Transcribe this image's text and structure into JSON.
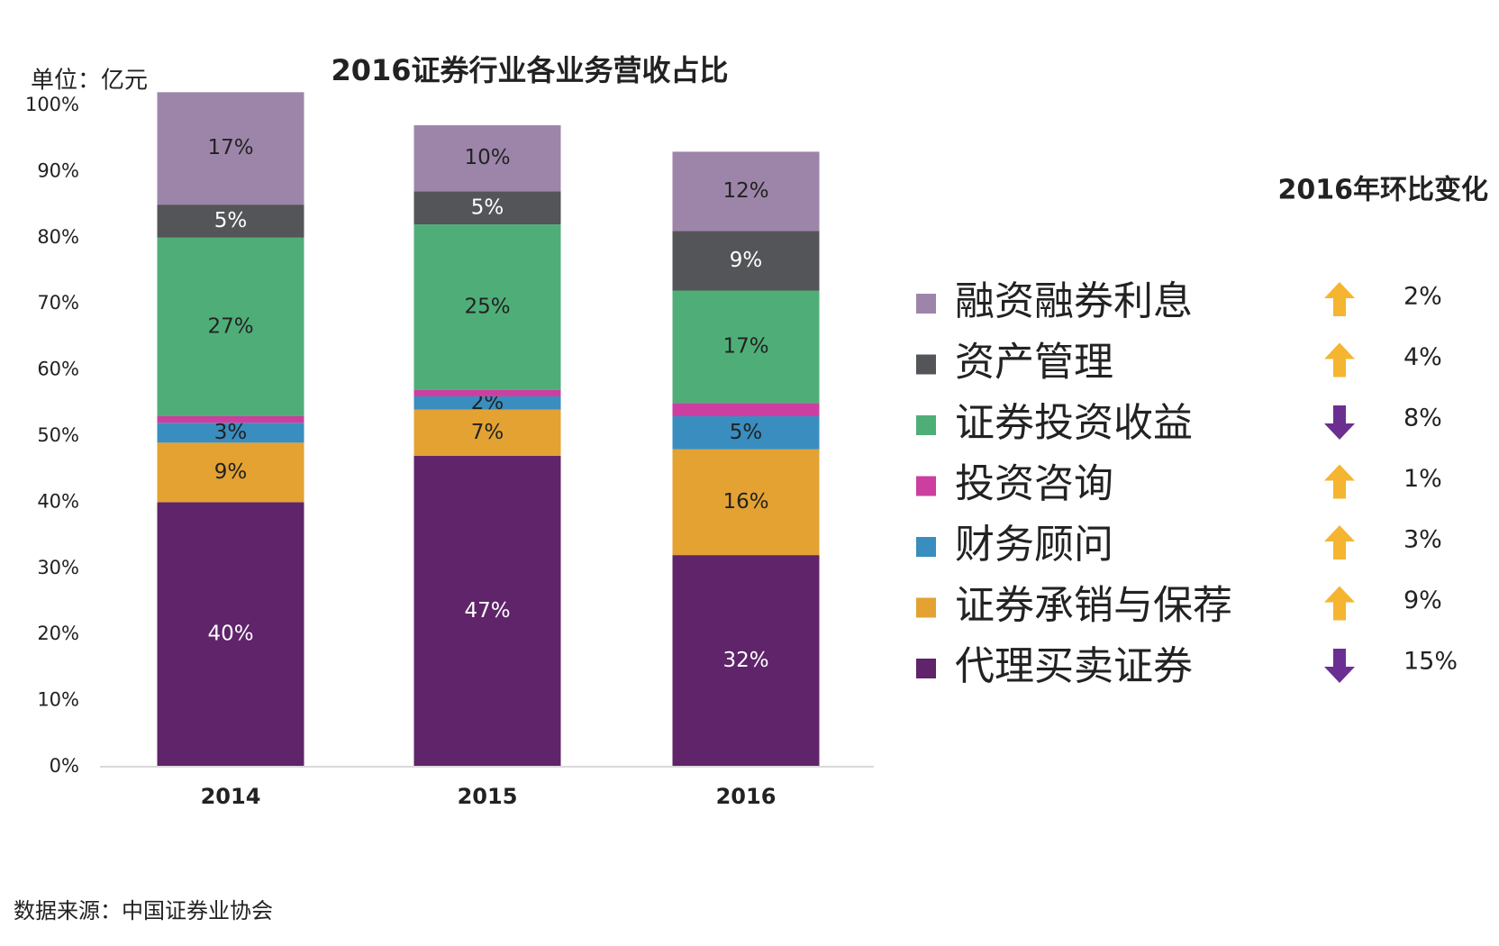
{
  "chart_data": {
    "type": "stacked_bar",
    "title": "2016证券行业各业务营收占比",
    "unit_label": "单位：亿元",
    "source": "数据来源：中国证券业协会",
    "categories": [
      "2014",
      "2015",
      "2016"
    ],
    "ylim": [
      0,
      100
    ],
    "yticks": [
      {
        "value": 0,
        "label": "0%"
      },
      {
        "value": 10,
        "label": "10%"
      },
      {
        "value": 20,
        "label": "20%"
      },
      {
        "value": 30,
        "label": "30%"
      },
      {
        "value": 40,
        "label": "40%"
      },
      {
        "value": 50,
        "label": "50%"
      },
      {
        "value": 60,
        "label": "60%"
      },
      {
        "value": 70,
        "label": "70%"
      },
      {
        "value": 80,
        "label": "80%"
      },
      {
        "value": 90,
        "label": "90%"
      },
      {
        "value": 100,
        "label": "100%"
      }
    ],
    "grid": false,
    "series": [
      {
        "name": "代理买卖证券",
        "color": "#5f2469",
        "values": [
          40,
          47,
          32
        ],
        "value_labels": [
          "40%",
          "47%",
          "32%"
        ]
      },
      {
        "name": "证券承销与保荐",
        "color": "#e3a232",
        "values": [
          9,
          7,
          16
        ],
        "value_labels": [
          "9%",
          "7%",
          "16%"
        ]
      },
      {
        "name": "财务顾问",
        "color": "#3a8dbf",
        "values": [
          3,
          2,
          5
        ],
        "value_labels": [
          "3%",
          "2%",
          "5%"
        ]
      },
      {
        "name": "投资咨询",
        "color": "#cc3ea0",
        "values": [
          1,
          1,
          2
        ],
        "value_labels": [
          null,
          null,
          null
        ]
      },
      {
        "name": "证券投资收益",
        "color": "#4fae78",
        "values": [
          27,
          25,
          17
        ],
        "value_labels": [
          "27%",
          "25%",
          "17%"
        ]
      },
      {
        "name": "资产管理",
        "color": "#545558",
        "values": [
          5,
          5,
          9
        ],
        "value_labels": [
          "5%",
          "5%",
          "9%"
        ]
      },
      {
        "name": "融资融券利息",
        "color": "#9d85aa",
        "values": [
          17,
          10,
          12
        ],
        "value_labels": [
          "17%",
          "10%",
          "12%"
        ]
      }
    ]
  },
  "change_panel": {
    "title": "2016年环比变化",
    "up_color": "#f5b531",
    "down_color": "#6b2f91",
    "items": [
      {
        "direction": "up",
        "value": "2%"
      },
      {
        "direction": "up",
        "value": "4%"
      },
      {
        "direction": "down",
        "value": "8%"
      },
      {
        "direction": "up",
        "value": "1%"
      },
      {
        "direction": "up",
        "value": "3%"
      },
      {
        "direction": "up",
        "value": "9%"
      },
      {
        "direction": "down",
        "value": "15%"
      }
    ]
  }
}
